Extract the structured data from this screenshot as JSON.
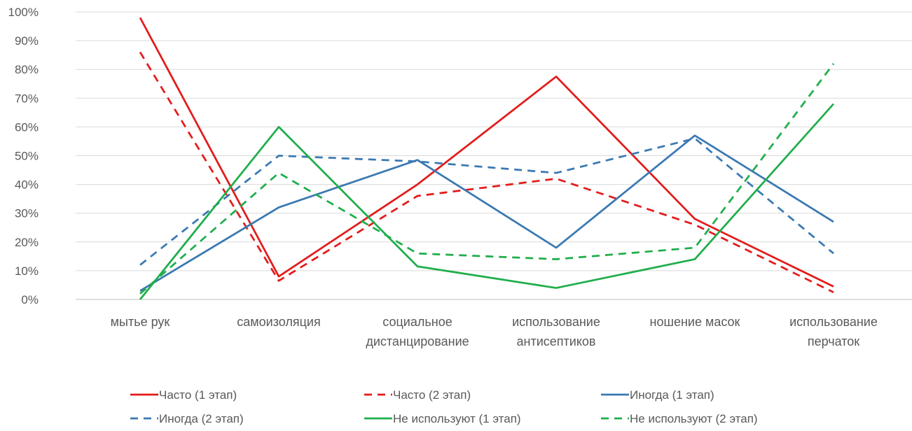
{
  "chart_data": {
    "type": "line",
    "categories": [
      [
        "мытье рук"
      ],
      [
        "самоизоляция"
      ],
      [
        "социальное",
        "дистанцирование"
      ],
      [
        "использование",
        "антисептиков"
      ],
      [
        "ношение масок"
      ],
      [
        "использование",
        "перчаток"
      ]
    ],
    "y_ticks": [
      "0%",
      "10%",
      "20%",
      "30%",
      "40%",
      "50%",
      "60%",
      "70%",
      "80%",
      "90%",
      "100%"
    ],
    "ylim": [
      0,
      100
    ],
    "grid": true,
    "legend_position": "bottom",
    "series": [
      {
        "name": "Часто (1 этап)",
        "color": "#e31b1b",
        "dash": false,
        "values": [
          98,
          8,
          40,
          77.5,
          28,
          4.5
        ]
      },
      {
        "name": "Часто (2 этап)",
        "color": "#e31b1b",
        "dash": true,
        "values": [
          86,
          6.5,
          36,
          42,
          26,
          2.5
        ]
      },
      {
        "name": "Иногда (1 этап)",
        "color": "#3a79b2",
        "dash": false,
        "values": [
          3,
          32,
          48.5,
          18,
          57,
          27
        ]
      },
      {
        "name": "Иногда (2 этап)",
        "color": "#3a79b2",
        "dash": true,
        "values": [
          12,
          50,
          48,
          44,
          56,
          16
        ]
      },
      {
        "name": "Не используют (1 этап)",
        "color": "#1fae4b",
        "dash": false,
        "values": [
          0,
          60,
          11.5,
          4,
          14,
          68
        ]
      },
      {
        "name": "Не используют (2 этап)",
        "color": "#1fae4b",
        "dash": true,
        "values": [
          2,
          44,
          16,
          14,
          18,
          82
        ]
      }
    ]
  }
}
